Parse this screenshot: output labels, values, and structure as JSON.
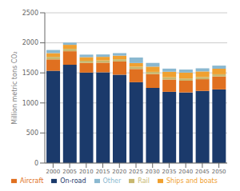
{
  "chart_data": {
    "type": "bar",
    "stacked": true,
    "categories": [
      "2000",
      "2005",
      "2010",
      "2015",
      "2020",
      "2025",
      "2030",
      "2035",
      "2040",
      "2045",
      "2050"
    ],
    "series": [
      {
        "name": "On-road",
        "color": "#1b3a6b",
        "values": [
          1535,
          1635,
          1505,
          1510,
          1470,
          1345,
          1250,
          1185,
          1175,
          1200,
          1225
        ]
      },
      {
        "name": "Aircraft",
        "color": "#e07020",
        "values": [
          190,
          225,
          160,
          160,
          220,
          220,
          230,
          205,
          195,
          195,
          215
        ]
      },
      {
        "name": "Rail",
        "color": "#c8b870",
        "values": [
          42,
          40,
          37,
          37,
          37,
          37,
          37,
          37,
          37,
          37,
          37
        ]
      },
      {
        "name": "Ships and boats",
        "color": "#f0a030",
        "values": [
          62,
          67,
          60,
          60,
          60,
          62,
          87,
          92,
          97,
          92,
          92
        ]
      },
      {
        "name": "Other",
        "color": "#8ab8d0",
        "values": [
          52,
          37,
          42,
          40,
          42,
          92,
          62,
          52,
          52,
          52,
          52
        ]
      }
    ],
    "ylabel": "Million metric tons CO₂",
    "ylim": [
      0,
      2500
    ],
    "yticks": [
      0,
      500,
      1000,
      1500,
      2000,
      2500
    ],
    "grid": true,
    "legend": "bottom"
  }
}
